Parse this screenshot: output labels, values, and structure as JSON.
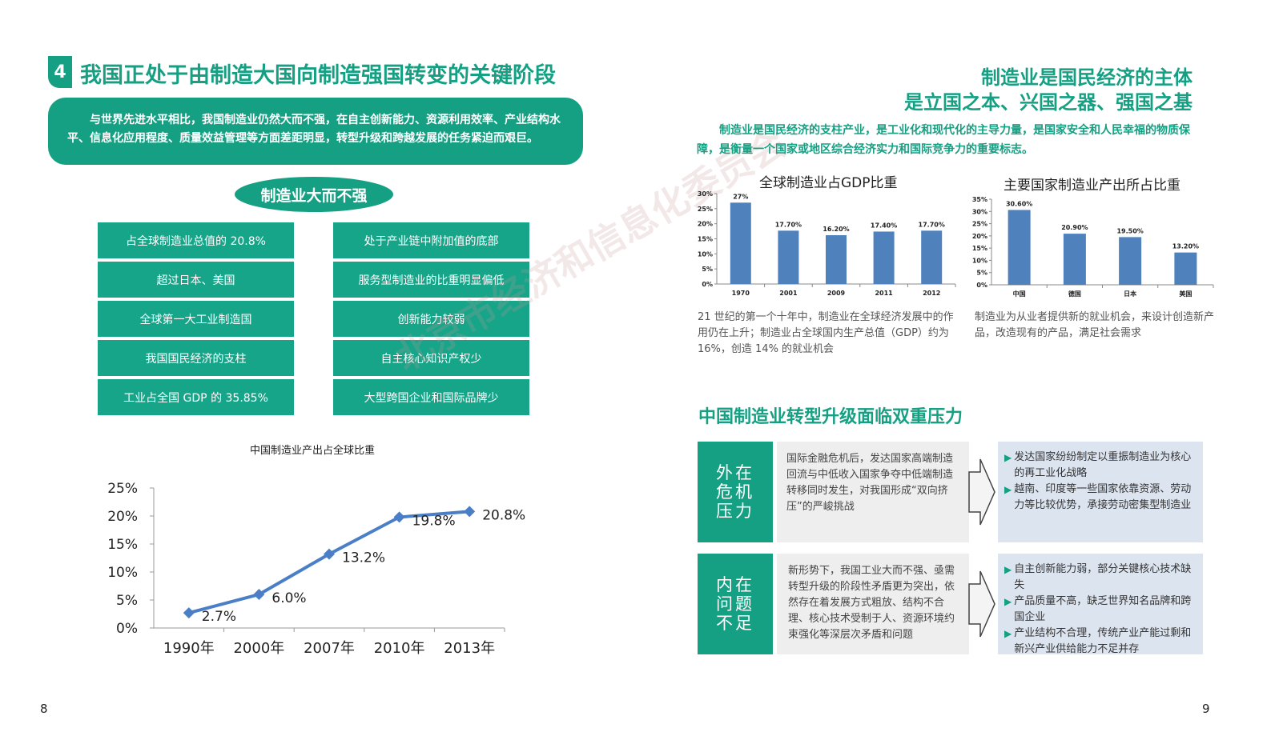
{
  "left": {
    "section_number": "4",
    "title": "我国正处于由制造大国向制造强国转变的关键阶段",
    "intro": "与世界先进水平相比，我国制造业仍然大而不强，在自主创新能力、资源利用效率、产业结构水平、信息化应用程度、质量效益管理等方面差距明显，转型升级和跨越发展的任务紧迫而艰巨。",
    "pill": "制造业大而不强",
    "strengths": [
      "占全球制造业总值的 20.8%",
      "超过日本、美国",
      "全球第一大工业制造国",
      "我国国民经济的支柱",
      "工业占全国 GDP 的 35.85%"
    ],
    "weaknesses": [
      "处于产业链中附加值的底部",
      "服务型制造业的比重明显偏低",
      "创新能力较弱",
      "自主核心知识产权少",
      "大型跨国企业和国际品牌少"
    ],
    "page_number": "8"
  },
  "right": {
    "title_line1": "制造业是国民经济的主体",
    "title_line2": "是立国之本、兴国之器、强国之基",
    "intro": "制造业是国民经济的支柱产业，是工业化和现代化的主导力量，是国家安全和人民幸福的物质保障，是衡量一个国家或地区综合经济实力和国际竞争力的重要标志。",
    "note1": "21 世纪的第一个十年中，制造业在全球经济发展中的作用仍在上升；制造业占全球国内生产总值（GDP）约为 16%，创造 14% 的就业机会",
    "note2": "制造业为从业者提供新的就业机会，来设计创造新产品，改造现有的产品，满足社会需求",
    "pressure_title": "中国制造业转型升级面临双重压力",
    "pressures": [
      {
        "label_lines": [
          "外在",
          "危机",
          "压力"
        ],
        "desc": "国际金融危机后，发达国家高端制造回流与中低收入国家争夺中低端制造转移同时发生，对我国形成“双向挤压”的严峻挑战",
        "results": [
          "发达国家纷纷制定以重振制造业为核心的再工业化战略",
          "越南、印度等一些国家依靠资源、劳动力等比较优势，承接劳动密集型制造业"
        ]
      },
      {
        "label_lines": [
          "内在",
          "问题",
          "不足"
        ],
        "desc": "新形势下，我国工业大而不强、亟需转型升级的阶段性矛盾更为突出，依然存在着发展方式粗放、结构不合理、核心技术受制于人、资源环境约束强化等深层次矛盾和问题",
        "results": [
          "自主创新能力弱，部分关键核心技术缺失",
          "产品质量不高，缺乏世界知名品牌和跨国企业",
          "产业结构不合理，传统产业产能过剩和新兴产业供给能力不足并存"
        ]
      }
    ],
    "page_number": "9"
  },
  "watermark": "北京市经济和信息化委员会",
  "colors": {
    "accent": "#15a083",
    "bar": "#4f81bd",
    "line": "#4a7fc8"
  },
  "chart_data": [
    {
      "type": "line",
      "title": "中国制造业产出占全球比重",
      "categories": [
        "1990年",
        "2000年",
        "2007年",
        "2010年",
        "2013年"
      ],
      "values": [
        2.7,
        6.0,
        13.2,
        19.8,
        20.8
      ],
      "value_labels": [
        "2.7%",
        "6.0%",
        "13.2%",
        "19.8%",
        "20.8%"
      ],
      "yticks": [
        "0%",
        "5%",
        "10%",
        "15%",
        "20%",
        "25%"
      ],
      "ylim": [
        0,
        25
      ]
    },
    {
      "type": "bar",
      "title": "全球制造业占GDP比重",
      "categories": [
        "1970",
        "2001",
        "2009",
        "2011",
        "2012"
      ],
      "values": [
        27,
        17.7,
        16.2,
        17.4,
        17.7
      ],
      "value_labels": [
        "27%",
        "17.70%",
        "16.20%",
        "17.40%",
        "17.70%"
      ],
      "yticks": [
        "0%",
        "5%",
        "10%",
        "15%",
        "20%",
        "25%",
        "30%"
      ],
      "ylim": [
        0,
        30
      ]
    },
    {
      "type": "bar",
      "title": "主要国家制造业产出所占比重",
      "categories": [
        "中国",
        "德国",
        "日本",
        "美国"
      ],
      "values": [
        30.6,
        20.9,
        19.5,
        13.2
      ],
      "value_labels": [
        "30.60%",
        "20.90%",
        "19.50%",
        "13.20%"
      ],
      "yticks": [
        "0%",
        "5%",
        "10%",
        "15%",
        "20%",
        "25%",
        "30%",
        "35%"
      ],
      "ylim": [
        0,
        35
      ]
    }
  ]
}
